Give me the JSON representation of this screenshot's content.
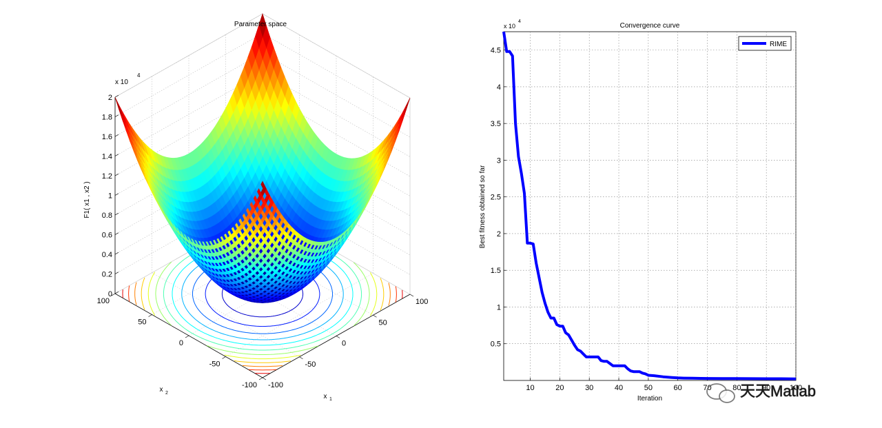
{
  "chart_data": [
    {
      "type": "surface",
      "title": "Parameter space",
      "zlabel": "F1( x_1 , x_2 )",
      "xlabel": "x_1",
      "ylabel": "x_2",
      "exponent_label": "x 10",
      "exponent_power": "4",
      "z_ticks": [
        "0",
        "0.2",
        "0.4",
        "0.6",
        "0.8",
        "1",
        "1.2",
        "1.4",
        "1.6",
        "1.8",
        "2"
      ],
      "x1_ticks": [
        "100",
        "50",
        "0",
        "-50",
        "-100"
      ],
      "x2_ticks": [
        "100",
        "50",
        "0",
        "-50",
        "-100"
      ],
      "x_range": [
        -100,
        100
      ],
      "y_range": [
        -100,
        100
      ],
      "z_range": [
        0,
        20000
      ],
      "function": "x1^2 + x2^2",
      "colormap": "jet",
      "contours_on_floor": true
    },
    {
      "type": "line",
      "title": "Convergence curve",
      "xlabel": "Iteration",
      "ylabel": "Best fitness obtained so far",
      "exponent_label": "x 10",
      "exponent_power": "4",
      "xlim": [
        1,
        100
      ],
      "ylim": [
        0,
        47500
      ],
      "x_ticks": [
        "10",
        "20",
        "30",
        "40",
        "50",
        "60",
        "70",
        "80",
        "90",
        "100"
      ],
      "y_ticks": [
        "0.5",
        "1",
        "1.5",
        "2",
        "2.5",
        "3",
        "3.5",
        "4",
        "4.5"
      ],
      "legend": "RIME",
      "legend_position": "top-right",
      "grid": true,
      "series": [
        {
          "name": "RIME",
          "color": "#0000ff",
          "x": [
            1,
            2,
            3,
            4,
            5,
            6,
            7,
            8,
            9,
            10,
            11,
            12,
            13,
            14,
            15,
            16,
            17,
            18,
            19,
            20,
            21,
            22,
            23,
            24,
            25,
            26,
            27,
            28,
            29,
            30,
            31,
            32,
            33,
            34,
            35,
            36,
            37,
            38,
            39,
            40,
            41,
            42,
            43,
            44,
            45,
            46,
            47,
            48,
            49,
            50,
            52,
            55,
            58,
            60,
            62,
            65,
            68,
            70,
            75,
            80,
            85,
            90,
            95,
            100
          ],
          "values": [
            47500,
            44800,
            44800,
            44200,
            35000,
            30500,
            28200,
            25500,
            18700,
            18700,
            18600,
            16000,
            14000,
            12000,
            10500,
            9300,
            8500,
            8500,
            7600,
            7400,
            7400,
            6500,
            6200,
            5500,
            4800,
            4200,
            4000,
            3600,
            3200,
            3200,
            3200,
            3200,
            3200,
            2700,
            2600,
            2600,
            2300,
            2000,
            2000,
            2000,
            2000,
            2000,
            1600,
            1300,
            1200,
            1200,
            1200,
            1000,
            900,
            700,
            650,
            500,
            400,
            350,
            320,
            300,
            280,
            270,
            260,
            250,
            240,
            235,
            230,
            220
          ]
        }
      ]
    }
  ],
  "watermark": "天天Matlab"
}
